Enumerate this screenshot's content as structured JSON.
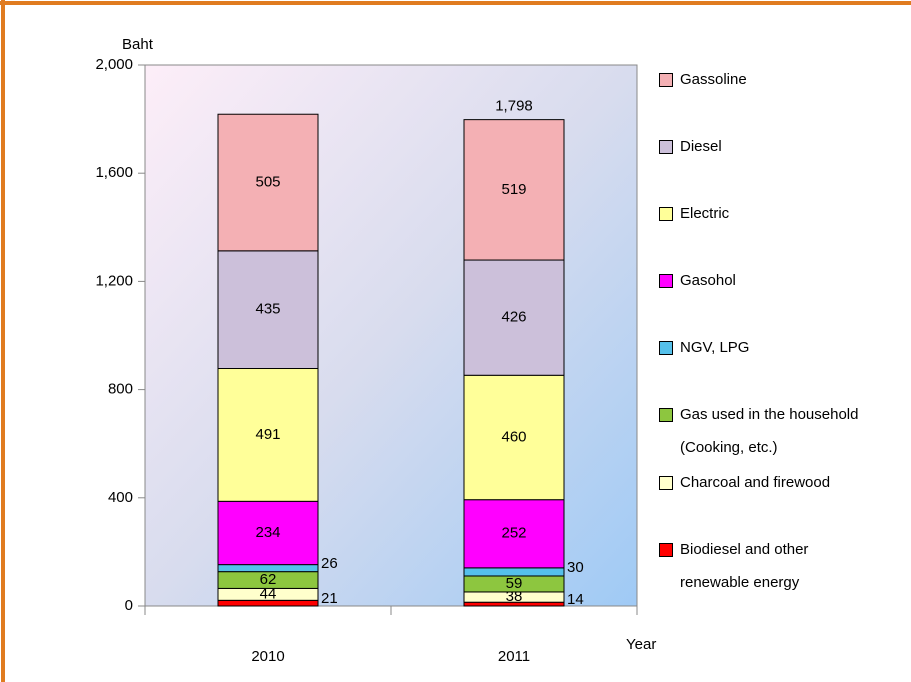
{
  "chart_data": {
    "type": "stacked_bar",
    "y_axis_label": "Baht",
    "x_axis_label": "Year",
    "categories": [
      "2010",
      "2011"
    ],
    "series": [
      {
        "name": "Biodiesel and other renewable energy",
        "color": "#ff0000",
        "values": [
          21,
          14
        ]
      },
      {
        "name": "Charcoal and firewood",
        "color": "#ffffcc",
        "values": [
          44,
          38
        ]
      },
      {
        "name": "Gas used in the household (Cooking, etc.)",
        "color": "#8dc63f",
        "values": [
          62,
          59
        ]
      },
      {
        "name": "NGV, LPG",
        "color": "#55c0ea",
        "values": [
          26,
          30
        ]
      },
      {
        "name": "Gasohol",
        "color": "#ff00ff",
        "values": [
          234,
          252
        ]
      },
      {
        "name": "Electric",
        "color": "#ffff99",
        "values": [
          491,
          460
        ]
      },
      {
        "name": "Diesel",
        "color": "#ccc0da",
        "values": [
          435,
          426
        ]
      },
      {
        "name": "Gassoline",
        "color": "#f4b0b4",
        "values": [
          505,
          519
        ]
      }
    ],
    "totals": [
      null,
      1798
    ],
    "total_labels": [
      null,
      "1,798"
    ],
    "ylim": [
      0,
      2000
    ],
    "yticks": [
      0,
      400,
      800,
      {
        "value": 1200,
        "label": "1,200"
      },
      {
        "value": 1600,
        "label": "1,600"
      },
      {
        "value": 2000,
        "label": "2,000"
      }
    ],
    "legend": "right"
  }
}
